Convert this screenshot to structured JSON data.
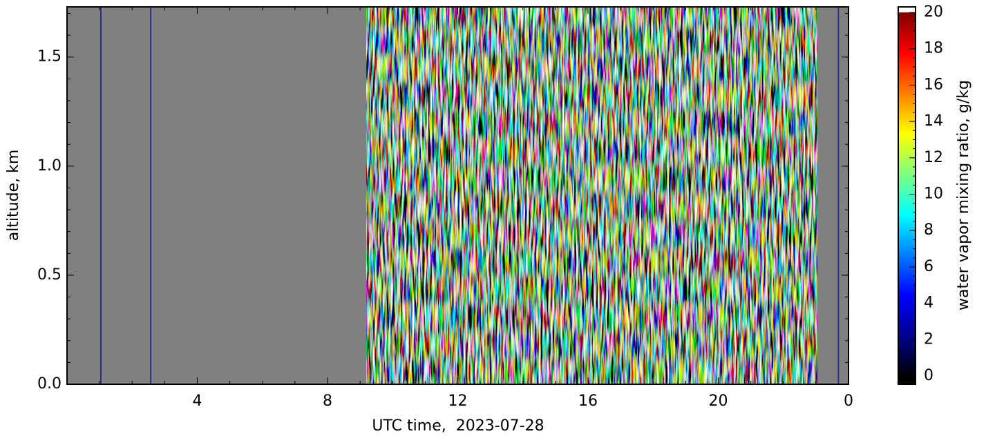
{
  "chart_data": {
    "type": "heatmap",
    "xlabel": "UTC time,  2023-07-28",
    "ylabel": "altitude, km",
    "xlim": [
      0,
      24
    ],
    "xticks": [
      4,
      8,
      12,
      16,
      20,
      {
        "value": 24,
        "label": "0"
      }
    ],
    "ylim": [
      0,
      1.73
    ],
    "yticks": [
      {
        "value": 0,
        "label": "0.0"
      },
      0.5,
      {
        "value": 1,
        "label": "1.0"
      },
      1.5
    ],
    "background": "#808080",
    "data_span": [
      9.19,
      23.04
    ],
    "vlines": {
      "color": "#2b2f8c",
      "x": [
        1.04,
        2.57,
        23.69
      ]
    },
    "colorbar": {
      "label": "water vapor mixing ratio, g/kg",
      "clim": [
        0,
        20
      ],
      "ticks": [
        0,
        2,
        4,
        6,
        8,
        10,
        12,
        14,
        16,
        18,
        20
      ],
      "colors": [
        "#000000",
        "#00008f",
        "#0000ff",
        "#007fff",
        "#00ffff",
        "#7fff7f",
        "#ffff00",
        "#ff7f00",
        "#ff0000",
        "#7f0000"
      ]
    }
  }
}
